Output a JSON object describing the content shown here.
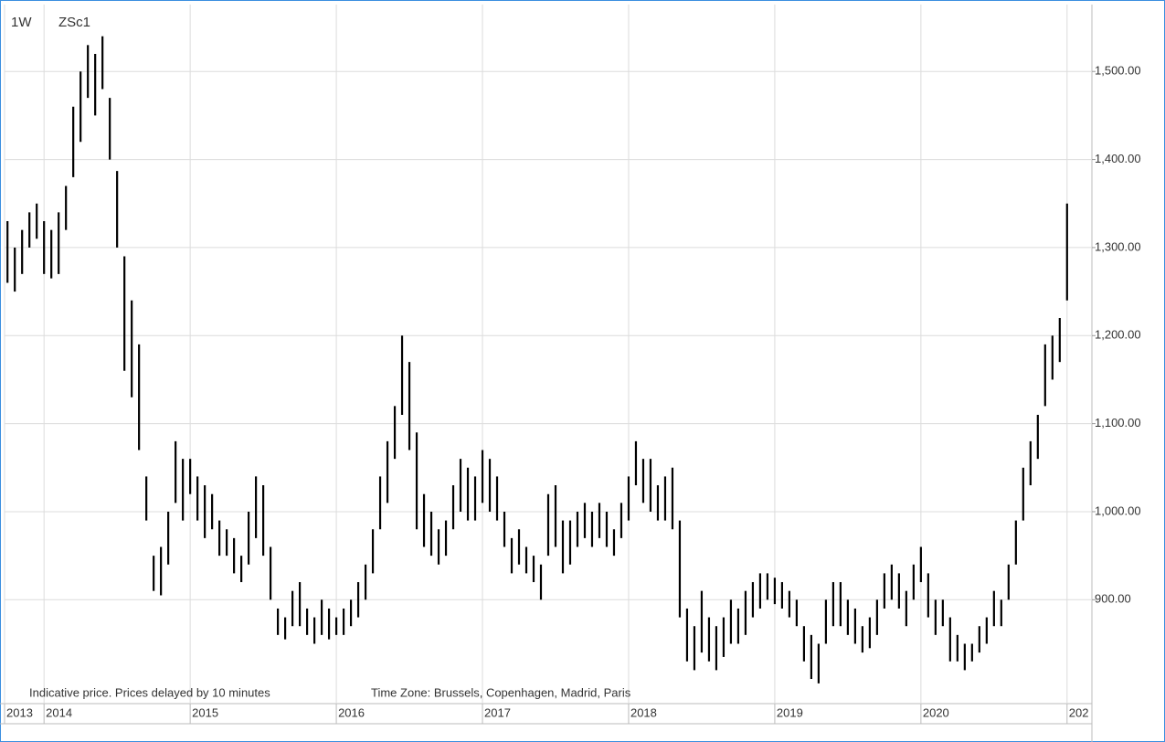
{
  "chart_data": {
    "type": "ohlc",
    "interval_label": "1W",
    "title": "ZSc1",
    "note": "Indicative price. Prices delayed by 10 minutes",
    "timezone_note": "Time Zone: Brussels, Copenhagen, Madrid, Paris",
    "color": "#000000",
    "grid": true,
    "xlim": [
      2013.73,
      2021.17
    ],
    "ylim": [
      782,
      1576
    ],
    "xticks": [
      {
        "value": 2013.73,
        "label": "2013"
      },
      2014,
      2015,
      2016,
      2017,
      2018,
      2019,
      2020,
      {
        "value": 2021,
        "label": "202"
      }
    ],
    "yticks": [
      {
        "value": 900,
        "label": "900.00"
      },
      {
        "value": 1000,
        "label": "1,000.00"
      },
      {
        "value": 1100,
        "label": "1,100.00"
      },
      {
        "value": 1200,
        "label": "1,200.00"
      },
      {
        "value": 1300,
        "label": "1,300.00"
      },
      {
        "value": 1400,
        "label": "1,400.00"
      },
      {
        "value": 1500,
        "label": "1,500.00"
      }
    ],
    "x": [
      2013.75,
      2013.8,
      2013.85,
      2013.9,
      2013.95,
      2014,
      2014.05,
      2014.1,
      2014.15,
      2014.2,
      2014.25,
      2014.3,
      2014.35,
      2014.4,
      2014.45,
      2014.5,
      2014.55,
      2014.6,
      2014.65,
      2014.7,
      2014.75,
      2014.8,
      2014.85,
      2014.9,
      2014.95,
      2015,
      2015.05,
      2015.1,
      2015.15,
      2015.2,
      2015.25,
      2015.3,
      2015.35,
      2015.4,
      2015.45,
      2015.5,
      2015.55,
      2015.6,
      2015.65,
      2015.7,
      2015.75,
      2015.8,
      2015.85,
      2015.9,
      2015.95,
      2016,
      2016.05,
      2016.1,
      2016.15,
      2016.2,
      2016.25,
      2016.3,
      2016.35,
      2016.4,
      2016.45,
      2016.5,
      2016.55,
      2016.6,
      2016.65,
      2016.7,
      2016.75,
      2016.8,
      2016.85,
      2016.9,
      2016.95,
      2017,
      2017.05,
      2017.1,
      2017.15,
      2017.2,
      2017.25,
      2017.3,
      2017.35,
      2017.4,
      2017.45,
      2017.5,
      2017.55,
      2017.6,
      2017.65,
      2017.7,
      2017.75,
      2017.8,
      2017.85,
      2017.9,
      2017.95,
      2018,
      2018.05,
      2018.1,
      2018.15,
      2018.2,
      2018.25,
      2018.3,
      2018.35,
      2018.4,
      2018.45,
      2018.5,
      2018.55,
      2018.6,
      2018.65,
      2018.7,
      2018.75,
      2018.8,
      2018.85,
      2018.9,
      2018.95,
      2019,
      2019.05,
      2019.1,
      2019.15,
      2019.2,
      2019.25,
      2019.3,
      2019.35,
      2019.4,
      2019.45,
      2019.5,
      2019.55,
      2019.6,
      2019.65,
      2019.7,
      2019.75,
      2019.8,
      2019.85,
      2019.9,
      2019.95,
      2020,
      2020.05,
      2020.1,
      2020.15,
      2020.2,
      2020.25,
      2020.3,
      2020.35,
      2020.4,
      2020.45,
      2020.5,
      2020.55,
      2020.6,
      2020.65,
      2020.7,
      2020.75,
      2020.8,
      2020.85,
      2020.9,
      2020.95,
      2021
    ],
    "high": [
      1330,
      1300,
      1320,
      1340,
      1350,
      1330,
      1320,
      1340,
      1370,
      1460,
      1500,
      1530,
      1520,
      1540,
      1470,
      1387,
      1290,
      1240,
      1190,
      1040,
      950,
      960,
      1000,
      1080,
      1060,
      1060,
      1040,
      1030,
      1020,
      990,
      980,
      970,
      950,
      1000,
      1040,
      1030,
      960,
      890,
      880,
      910,
      920,
      890,
      880,
      900,
      890,
      880,
      890,
      900,
      920,
      940,
      980,
      1040,
      1080,
      1120,
      1200,
      1170,
      1090,
      1020,
      1000,
      980,
      990,
      1030,
      1060,
      1050,
      1040,
      1070,
      1060,
      1040,
      1000,
      970,
      980,
      960,
      950,
      940,
      1020,
      1030,
      990,
      990,
      1000,
      1010,
      1000,
      1010,
      1000,
      980,
      1010,
      1040,
      1080,
      1060,
      1060,
      1030,
      1040,
      1050,
      990,
      890,
      870,
      910,
      880,
      870,
      880,
      900,
      890,
      910,
      920,
      930,
      930,
      925,
      920,
      910,
      900,
      870,
      860,
      850,
      900,
      920,
      920,
      900,
      890,
      870,
      880,
      900,
      930,
      940,
      930,
      910,
      940,
      960,
      930,
      900,
      900,
      880,
      860,
      850,
      850,
      870,
      880,
      910,
      900,
      940,
      990,
      1050,
      1080,
      1110,
      1190,
      1200,
      1220,
      1350
    ],
    "low": [
      1260,
      1250,
      1270,
      1300,
      1310,
      1270,
      1265,
      1270,
      1320,
      1380,
      1420,
      1470,
      1450,
      1480,
      1400,
      1300,
      1160,
      1130,
      1070,
      990,
      910,
      905,
      940,
      1010,
      990,
      1020,
      990,
      970,
      980,
      950,
      950,
      930,
      920,
      940,
      970,
      950,
      900,
      860,
      855,
      870,
      870,
      860,
      850,
      860,
      855,
      860,
      860,
      870,
      880,
      900,
      930,
      980,
      1010,
      1060,
      1110,
      1070,
      980,
      960,
      950,
      940,
      950,
      980,
      1000,
      990,
      990,
      1010,
      1000,
      990,
      960,
      930,
      940,
      930,
      920,
      900,
      950,
      960,
      930,
      940,
      960,
      970,
      960,
      970,
      960,
      950,
      970,
      990,
      1030,
      1010,
      1000,
      990,
      990,
      980,
      880,
      830,
      820,
      840,
      830,
      820,
      835,
      850,
      850,
      860,
      880,
      890,
      900,
      895,
      890,
      880,
      870,
      830,
      810,
      805,
      850,
      870,
      870,
      860,
      850,
      840,
      845,
      860,
      890,
      900,
      890,
      870,
      900,
      920,
      880,
      860,
      870,
      830,
      830,
      820,
      830,
      840,
      850,
      870,
      870,
      900,
      940,
      990,
      1030,
      1060,
      1120,
      1150,
      1170,
      1240
    ]
  }
}
